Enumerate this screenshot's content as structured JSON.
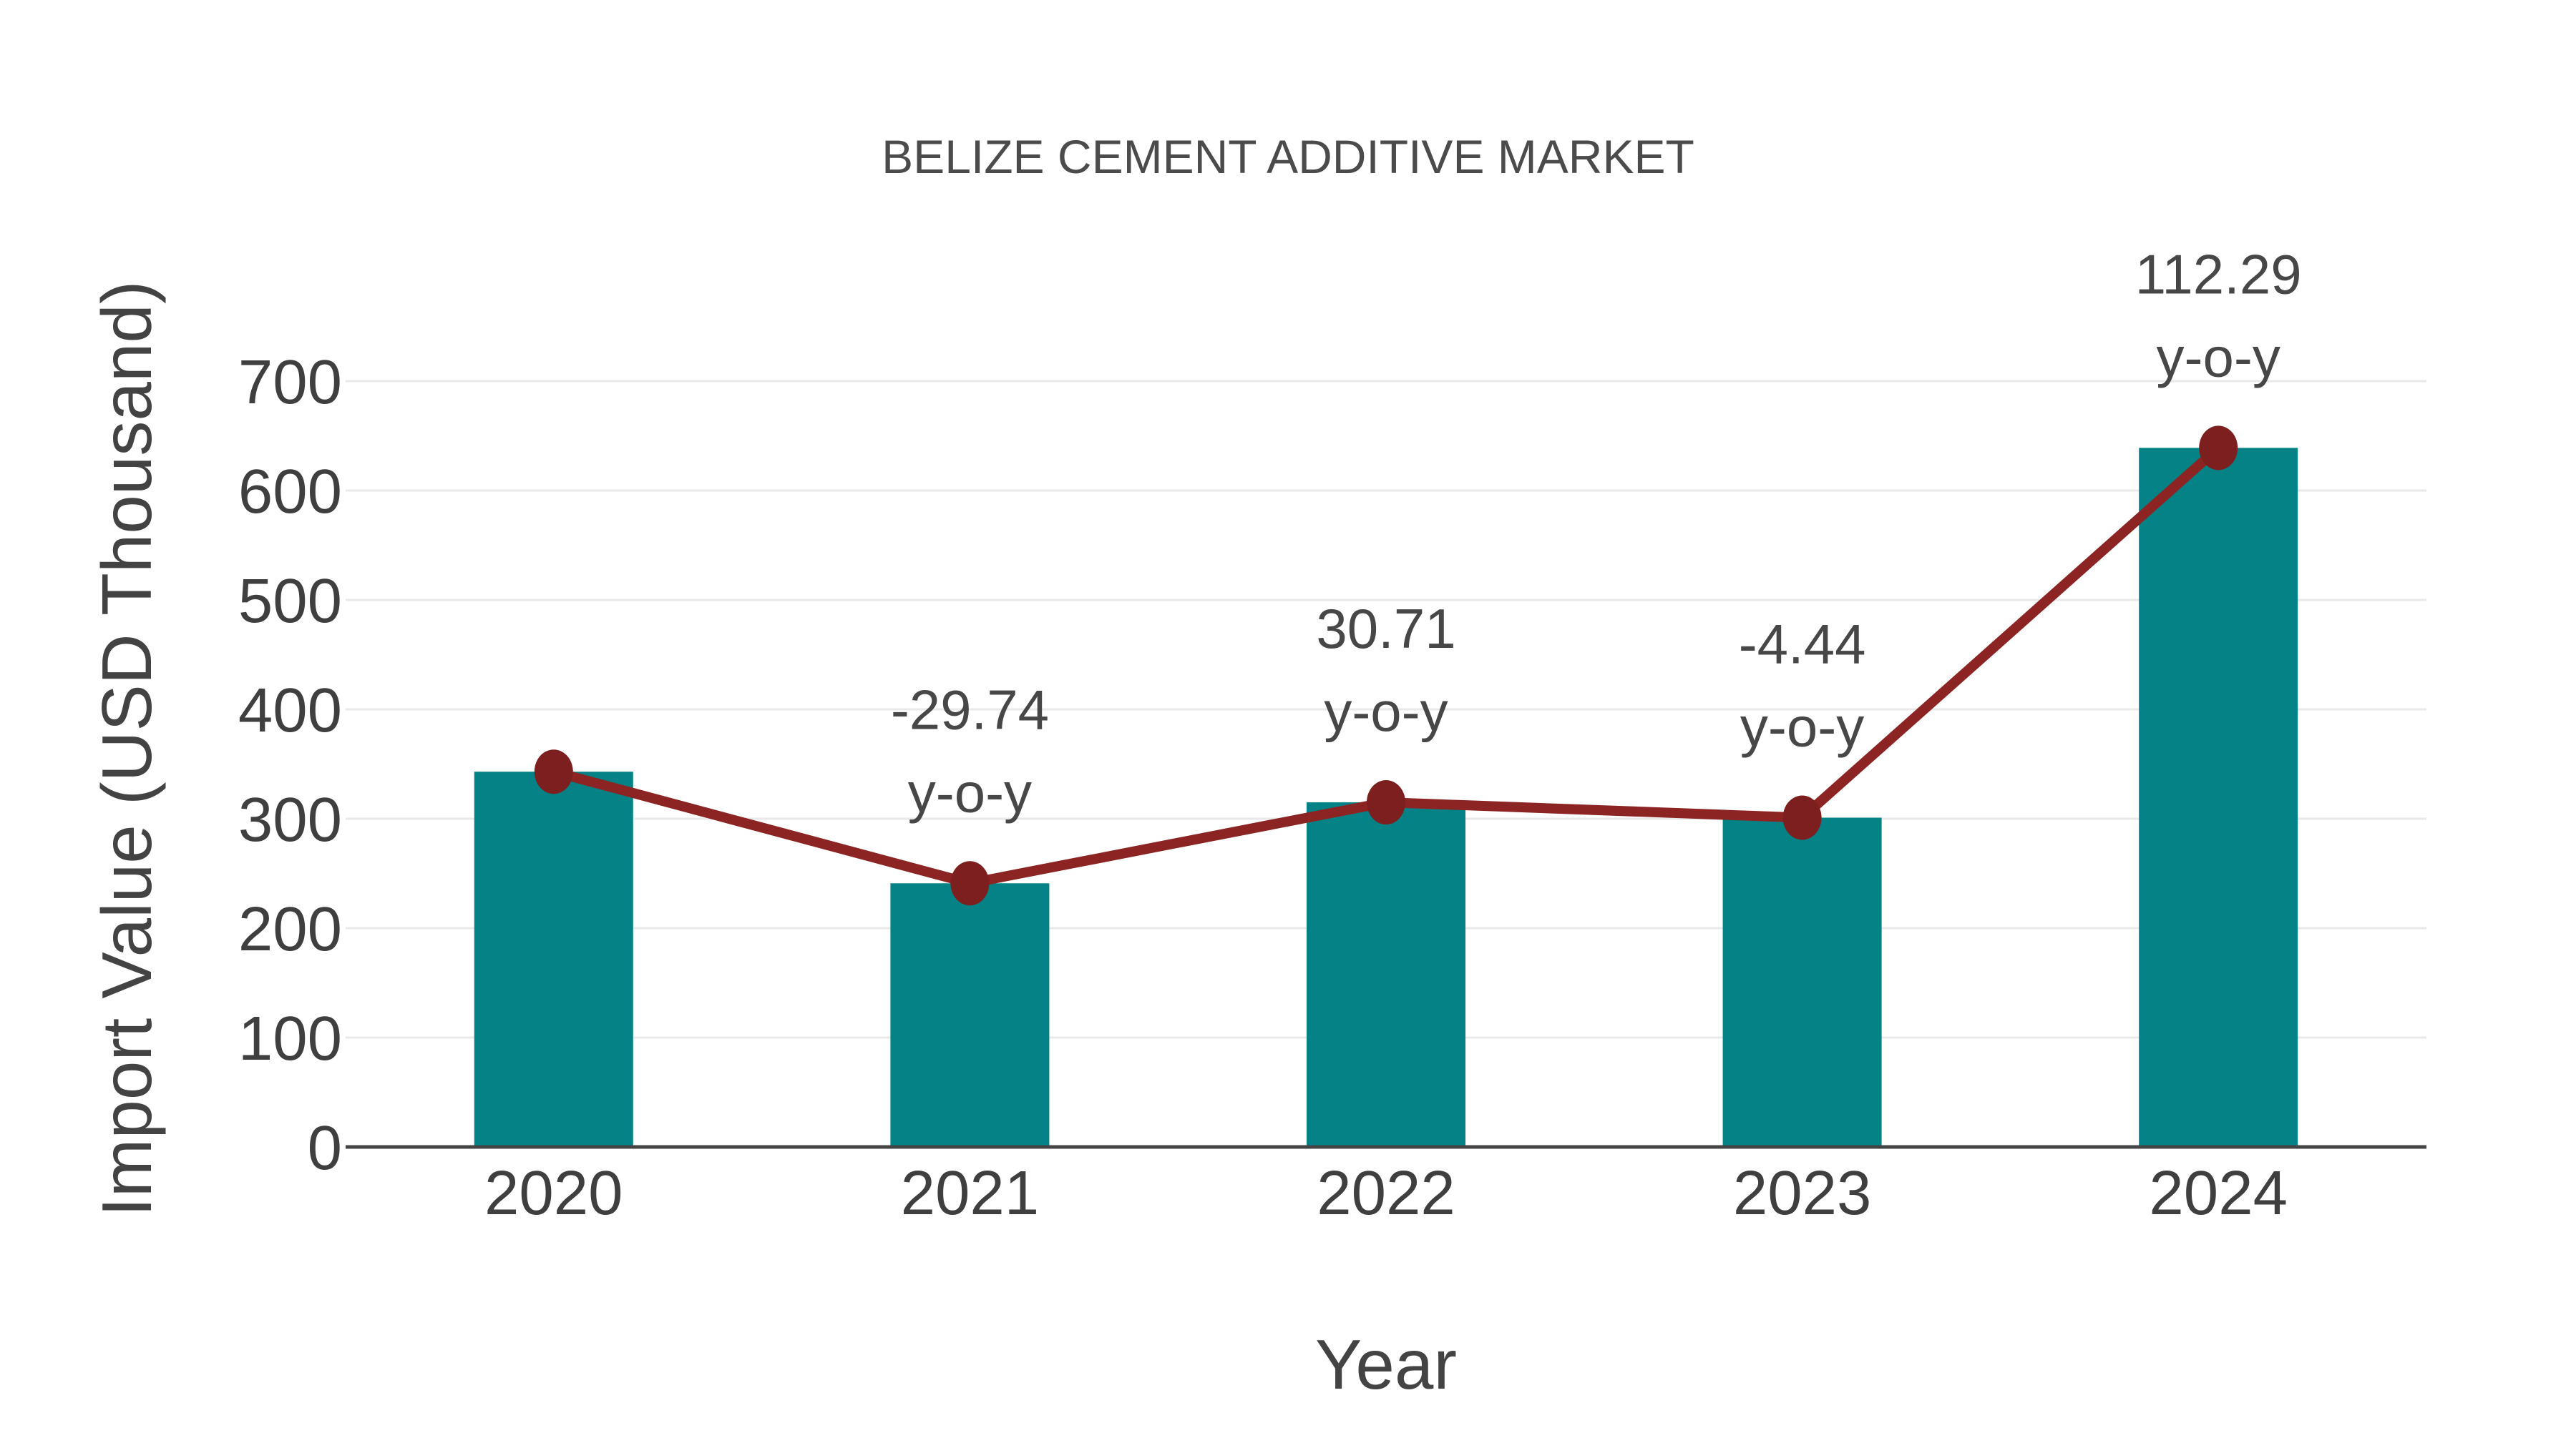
{
  "chart_data": {
    "type": "bar",
    "title": "BELIZE CEMENT ADDITIVE MARKET",
    "categories": [
      "2020",
      "2021",
      "2022",
      "2023",
      "2024"
    ],
    "series": [
      {
        "name": "Import Value",
        "type": "bar",
        "values": [
          343,
          241,
          315,
          301,
          639
        ]
      },
      {
        "name": "Year-over-year change",
        "type": "line",
        "values": [
          343,
          241,
          315,
          301,
          639
        ],
        "point_labels": [
          "",
          "-29.74",
          "30.71",
          "-4.44",
          "112.29"
        ],
        "point_label_suffix": "y-o-y"
      }
    ],
    "xlabel": "Year",
    "ylabel": "Import Value (USD Thousand)",
    "ylim": [
      0,
      700
    ],
    "yticks": [
      0,
      100,
      200,
      300,
      400,
      500,
      600,
      700
    ],
    "grid": true,
    "legend": "none"
  },
  "colors": {
    "bar": "#048286",
    "line": "#8B2423",
    "marker": "#7E1F1F",
    "grid": "#E9E9E9",
    "axis": "#444444",
    "tick_text": "#3F3F3F",
    "annotation_text": "#474747",
    "title_text": "#4B4B4B",
    "background": "#FFFFFF"
  }
}
